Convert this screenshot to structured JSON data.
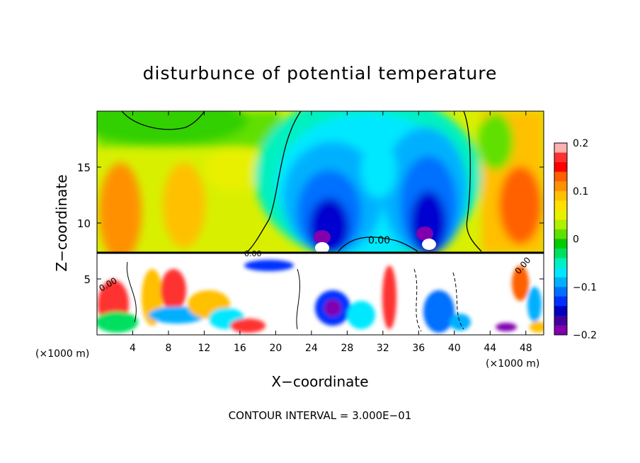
{
  "chart_data": {
    "type": "heatmap",
    "title": "disturbunce of potential temperature",
    "xlabel": "X−coordinate",
    "ylabel": "Z−coordinate",
    "x_unit_label": "(×1000 m)",
    "z_unit_label": "(×1000 m)",
    "xlim": [
      0,
      50
    ],
    "ylim": [
      0,
      20
    ],
    "x_ticks": [
      4,
      8,
      12,
      16,
      20,
      24,
      28,
      32,
      36,
      40,
      44,
      48
    ],
    "x_tick_labels": [
      "4",
      "8",
      "12",
      "16",
      "20",
      "24",
      "28",
      "32",
      "36",
      "40",
      "44",
      "48"
    ],
    "y_ticks": [
      5,
      10,
      15
    ],
    "y_tick_labels": [
      "5",
      "10",
      "15"
    ],
    "colorbar": {
      "range": [
        -0.2,
        0.2
      ],
      "ticks": [
        0.2,
        0.1,
        0,
        -0.1,
        -0.2
      ],
      "tick_labels": [
        "0.2",
        "0.1",
        "0",
        "−0.1",
        "−0.2"
      ],
      "colors": [
        "#ffb0b0",
        "#ff3030",
        "#ff0000",
        "#ff6000",
        "#ff9000",
        "#ffc000",
        "#ffe000",
        "#e8f000",
        "#b0f000",
        "#60e000",
        "#00cc00",
        "#00e060",
        "#00f0c0",
        "#00e8ff",
        "#00b0ff",
        "#0070ff",
        "#0030ff",
        "#0000c0",
        "#4000a0",
        "#8000b0"
      ]
    },
    "contour_labels": [
      "0.00",
      "0.00",
      "0.00",
      "0.00"
    ],
    "footer": "CONTOUR INTERVAL = 3.000E−01"
  }
}
